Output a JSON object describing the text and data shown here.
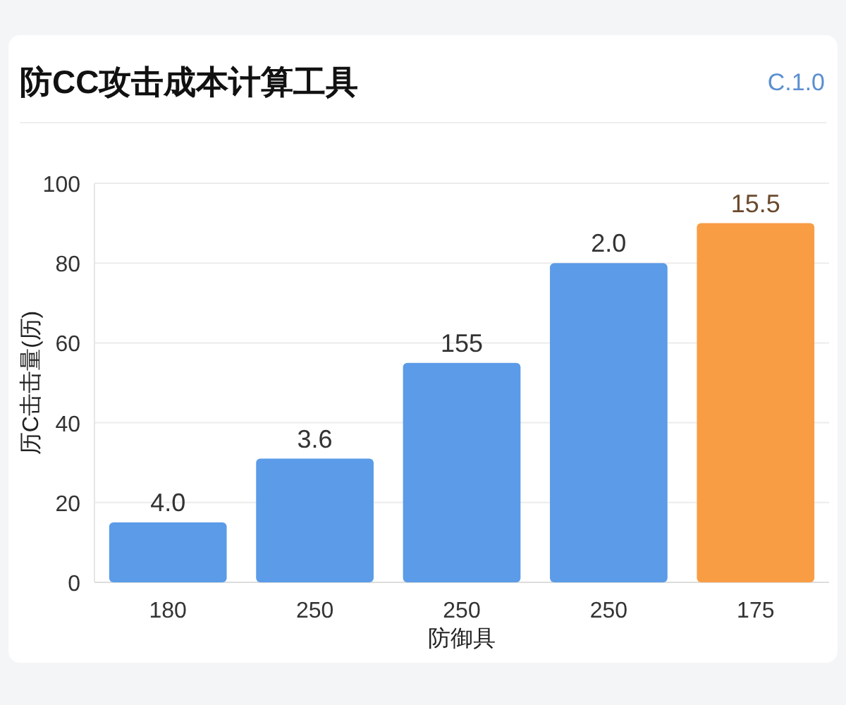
{
  "chart_data": {
    "type": "bar",
    "title": "防CC攻击成本计算工具",
    "annotations": [
      "C.1.0",
      "4.0",
      "3.6",
      "155",
      "2.0",
      "15.5"
    ],
    "xlabel": "防御具",
    "ylabel": "历C击击量(历)",
    "categories": [
      "180",
      "250",
      "250",
      "250",
      "175"
    ],
    "values": [
      15,
      31,
      55,
      80,
      90
    ],
    "colors": [
      "#5b9be8",
      "#5b9be8",
      "#5b9be8",
      "#5b9be8",
      "#f99d45"
    ],
    "ylim": [
      0,
      100
    ],
    "yticks": [
      0,
      20,
      40,
      60,
      80,
      100
    ],
    "grid": "y"
  }
}
